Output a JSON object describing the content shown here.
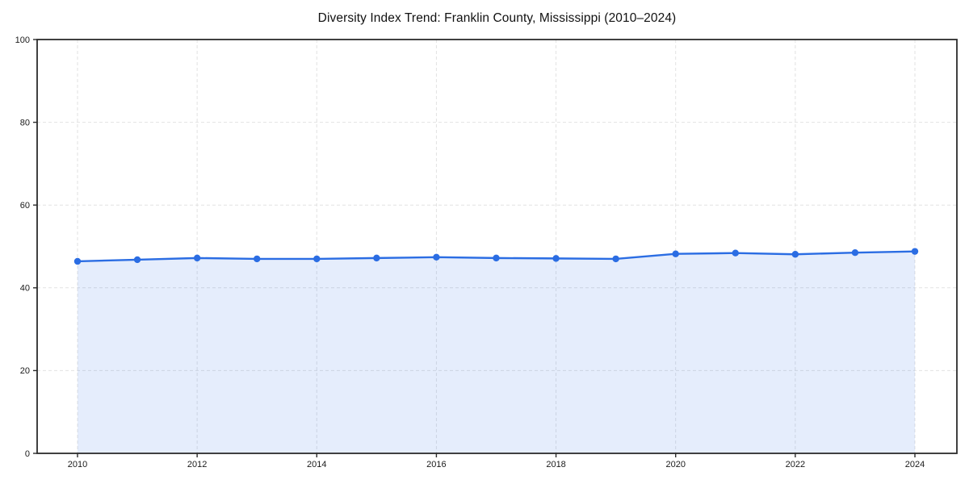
{
  "chart_data": {
    "type": "area",
    "title": "Diversity Index Trend: Franklin County, Mississippi (2010–2024)",
    "x": [
      2010,
      2011,
      2012,
      2013,
      2014,
      2015,
      2016,
      2017,
      2018,
      2019,
      2020,
      2021,
      2022,
      2023,
      2024
    ],
    "series": [
      {
        "name": "Diversity Index",
        "values": [
          46.4,
          46.8,
          47.2,
          47.0,
          47.0,
          47.2,
          47.4,
          47.2,
          47.1,
          47.0,
          48.2,
          48.4,
          48.1,
          48.5,
          48.8
        ]
      }
    ],
    "xlabel": "",
    "ylabel": "",
    "ylim": [
      0,
      100
    ],
    "xticks": [
      2010,
      2012,
      2014,
      2016,
      2018,
      2020,
      2022,
      2024
    ],
    "yticks": [
      0,
      20,
      40,
      60,
      80,
      100
    ],
    "grid": true,
    "grid_style": "dashed",
    "legend": false,
    "marker": "circle",
    "colors": {
      "line": "#2b6de3",
      "marker": "#2b6de3",
      "fill": "rgba(43, 109, 227, 0.12)",
      "grid": "#e2e2e2",
      "spine": "#2b2b2b",
      "tick_text": "#1a1a1a",
      "title_text": "#111111",
      "background": "#ffffff"
    }
  }
}
